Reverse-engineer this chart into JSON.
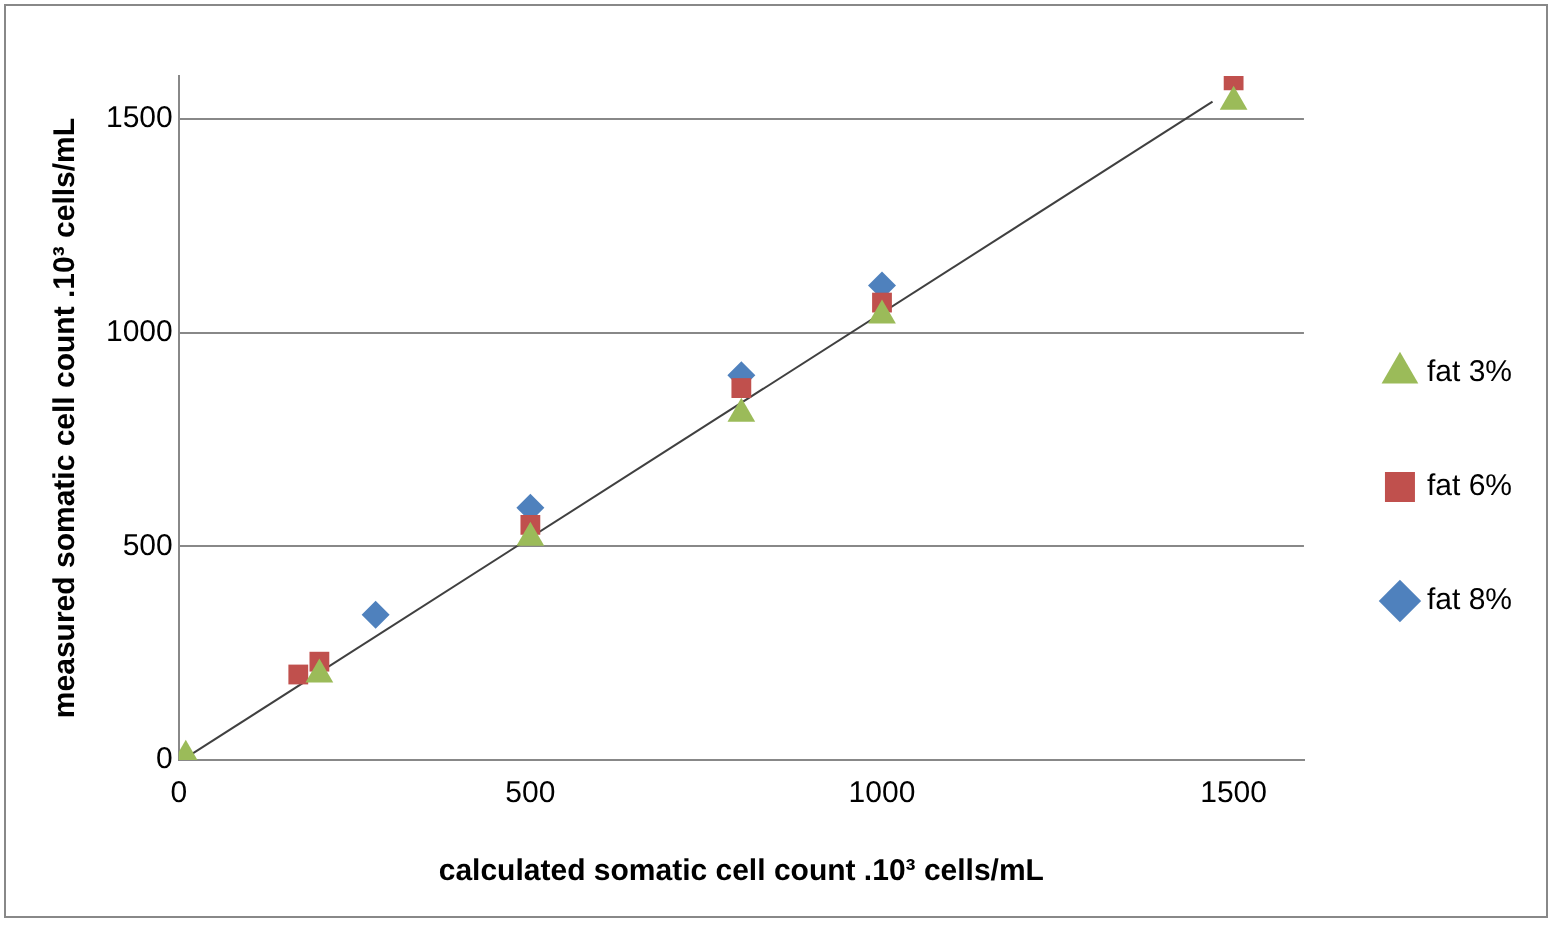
{
  "chart_data": {
    "type": "scatter",
    "xlabel": "calculated somatic cell count .10³ cells/mL",
    "ylabel": "measured somatic cell count .10³ cells/mL",
    "xlim": [
      0,
      1600
    ],
    "xticks": [
      0,
      500,
      1000,
      1500
    ],
    "ylim": [
      0,
      1600
    ],
    "yticks": [
      0,
      500,
      1000,
      1500
    ],
    "grid": "y",
    "legend": "right",
    "series": [
      {
        "name": "fat 3%",
        "color": "#9bbb59",
        "marker": "triangle",
        "x": [
          10,
          200,
          500,
          800,
          1000,
          1500
        ],
        "values": [
          10,
          200,
          520,
          810,
          1040,
          1540
        ]
      },
      {
        "name": "fat 6%",
        "color": "#c0504d",
        "marker": "square",
        "x": [
          170,
          200,
          500,
          800,
          1000,
          1500
        ],
        "values": [
          200,
          230,
          550,
          870,
          1070,
          1590
        ]
      },
      {
        "name": "fat 8%",
        "color": "#4f81bd",
        "marker": "diamond",
        "x": [
          280,
          500,
          800,
          1000
        ],
        "values": [
          340,
          590,
          900,
          1110
        ]
      },
      {
        "type": "line",
        "color": "#404040",
        "marker": "none",
        "x": [
          10,
          1470
        ],
        "values": [
          5,
          1540
        ]
      }
    ]
  }
}
